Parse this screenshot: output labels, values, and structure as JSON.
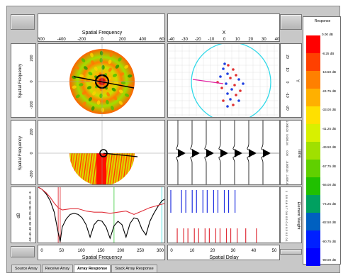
{
  "axes": {
    "top_spatial_frequency": "Spatial Frequency",
    "top_x": "X",
    "left_top": "Spatial Frequency",
    "left_mid": "Spatial Frequency",
    "left_bottom": "dB",
    "right_top": "Y",
    "right_mid": "Time",
    "right_bottom": "Element Weight",
    "bottom_spatial_frequency": "Spatial Frequency",
    "bottom_spatial_delay": "Spatial Delay"
  },
  "ticks": {
    "top_spatial_frequency": [
      "600",
      "-400",
      "-200",
      "0",
      "200",
      "400",
      "600"
    ],
    "top_x": [
      "-40",
      "-30",
      "-20",
      "-10",
      "0",
      "10",
      "20",
      "30",
      "40"
    ],
    "left_top": [
      "200",
      "0",
      "-200"
    ],
    "left_mid": [
      "200",
      "0",
      "-200"
    ],
    "left_bottom": [
      "-5",
      "-10",
      "-15",
      "-20",
      "-25",
      "-30",
      "-35",
      "-40",
      "-45",
      "-50"
    ],
    "right_top": [
      "20",
      "10",
      "0",
      "-10",
      "-20"
    ],
    "right_mid": [
      "1.00E-03",
      "5.00E-04",
      "0.00",
      "-5.00E-04",
      "-1.00E-03"
    ],
    "right_bottom": [
      "1",
      "0.9",
      "0.8",
      "0.7",
      "0.6",
      "0.5",
      "0.4",
      "0.3",
      "0.2",
      "0.1"
    ],
    "bottom_spatial_frequency": [
      "0",
      "50",
      "100",
      "150",
      "200",
      "250",
      "300"
    ],
    "bottom_spatial_delay": [
      "0",
      "10",
      "20",
      "30",
      "40",
      "50"
    ]
  },
  "legend": {
    "title": "Response",
    "labels": [
      "0.00 dB",
      "-8.25 dB",
      "-16.50 dB",
      "-24.75 dB",
      "-33.00 dB",
      "-41.25 dB",
      "-49.50 dB",
      "-57.75 dB",
      "-66.00 dB",
      "-74.25 dB",
      "-82.50 dB",
      "-90.75 dB",
      "-99.00 dB"
    ],
    "colors": [
      "#ff0000",
      "#ff4000",
      "#ff8000",
      "#ffb000",
      "#ffe000",
      "#d8f000",
      "#a0e000",
      "#60d000",
      "#20c000",
      "#00a060",
      "#0060c0",
      "#0020ff",
      "#0000ff"
    ]
  },
  "tabs": [
    "Source Array",
    "Receive Array",
    "Array Response",
    "Stack Array Response"
  ],
  "active_tab": 2,
  "chart_data": [
    {
      "type": "line",
      "title": "",
      "xlabel": "Spatial Frequency",
      "ylabel": "dB",
      "xlim": [
        0,
        320
      ],
      "ylim": [
        -50,
        0
      ],
      "series": [
        {
          "values_x": [
            0,
            10,
            20,
            30,
            40,
            50,
            55,
            60,
            70,
            80,
            90,
            100,
            110,
            120,
            130,
            140,
            150,
            160,
            170,
            180,
            190,
            200,
            210,
            220,
            230,
            240,
            250,
            260,
            270,
            280,
            290,
            300,
            310,
            320
          ],
          "values_y": [
            0,
            -2,
            -6,
            -12,
            -22,
            -40,
            -48,
            -35,
            -28,
            -24,
            -23,
            -24,
            -27,
            -33,
            -44,
            -33,
            -29,
            -30,
            -35,
            -45,
            -34,
            -30,
            -33,
            -44,
            -32,
            -27,
            -28,
            -37,
            -42,
            -30,
            -23,
            -17,
            -12,
            -10
          ],
          "color": "#000000"
        },
        {
          "values_x": [
            0,
            10,
            20,
            30,
            40,
            50,
            60,
            80,
            100,
            120,
            140,
            160,
            180,
            200,
            220,
            240,
            260,
            280,
            300,
            310,
            320
          ],
          "values_y": [
            0,
            -2,
            -5,
            -9,
            -14,
            -18,
            -20,
            -19,
            -19,
            -21,
            -22,
            -22,
            -23,
            -22,
            -21,
            -24,
            -21,
            -18,
            -16,
            -15,
            -14
          ],
          "color": "#e0303a"
        }
      ],
      "markers": [
        {
          "x": 50,
          "color": "#e0303a"
        },
        {
          "x": 55,
          "color": "#e0303a"
        },
        {
          "x": 190,
          "color": "#50d050"
        },
        {
          "x": 310,
          "color": "#40e0e0"
        }
      ]
    },
    {
      "type": "bar",
      "title": "",
      "xlabel": "Spatial Delay",
      "ylabel": "Element Weight",
      "xlim": [
        0,
        50
      ],
      "ylim": [
        0,
        1
      ],
      "series": [
        {
          "name": "",
          "color": "#2030e0",
          "x": [
            0,
            5,
            7,
            10,
            12,
            15,
            17,
            20,
            22,
            25,
            27,
            30
          ],
          "values": [
            1,
            1,
            1,
            1,
            1,
            1,
            1,
            1,
            1,
            1,
            1,
            1
          ]
        },
        {
          "name": "",
          "color": "#e0303a",
          "x": [
            3,
            6,
            8,
            11,
            13,
            16,
            18,
            21,
            23,
            26,
            28,
            31,
            35,
            40
          ],
          "values": [
            0.55,
            0.55,
            0.55,
            0.55,
            0.55,
            0.55,
            0.55,
            0.55,
            0.55,
            0.55,
            0.55,
            0.55,
            0.55,
            0.55
          ]
        }
      ]
    }
  ]
}
